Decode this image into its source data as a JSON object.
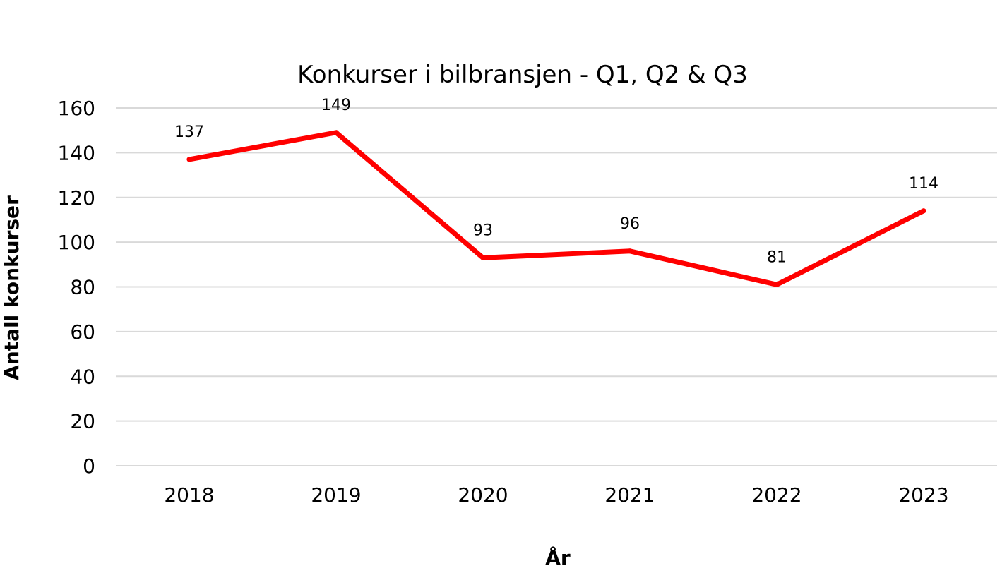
{
  "chart_data": {
    "type": "line",
    "title": "Konkurser i bilbransjen - Q1, Q2 & Q3",
    "xlabel": "År",
    "ylabel": "Antall konkurser",
    "categories": [
      "2018",
      "2019",
      "2020",
      "2021",
      "2022",
      "2023"
    ],
    "series": [
      {
        "values": [
          137,
          149,
          93,
          96,
          81,
          114
        ],
        "color": "#ff0000"
      }
    ],
    "ylim": [
      0,
      160
    ],
    "yticks": [
      0,
      20,
      40,
      60,
      80,
      100,
      120,
      140,
      160
    ],
    "grid": true,
    "gridColor": "#d9d9d9",
    "dataLabels": true
  }
}
